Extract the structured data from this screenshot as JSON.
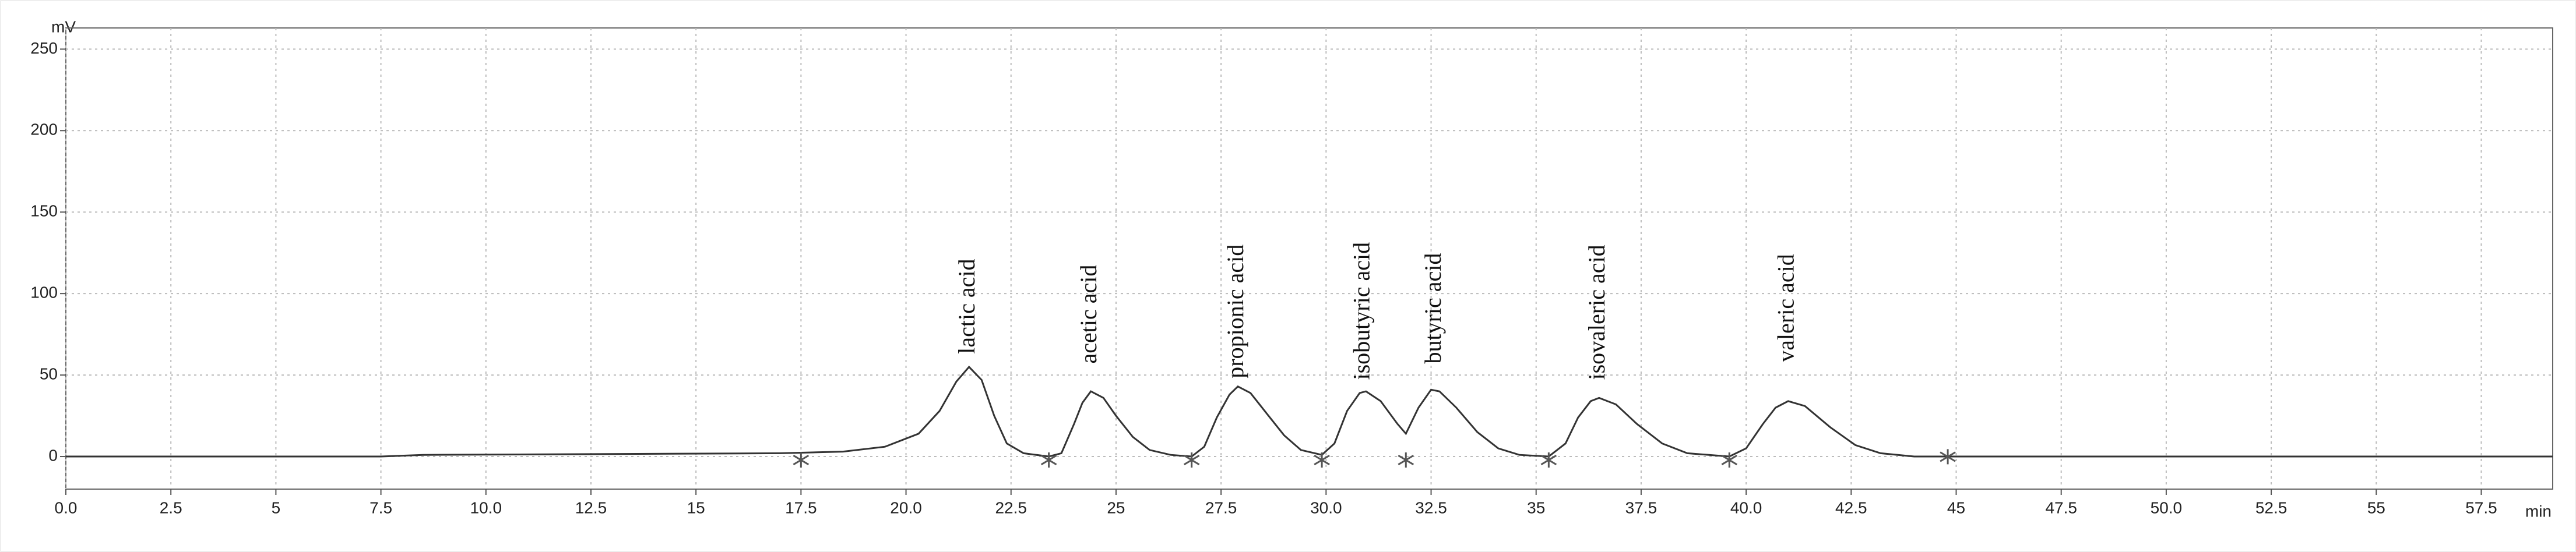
{
  "chart_data": {
    "type": "line",
    "x_unit": "min",
    "y_unit": "mV",
    "xlim": [
      0,
      59.2
    ],
    "ylim": [
      -20,
      263
    ],
    "xticks": [
      {
        "value": 0,
        "label": "0.0"
      },
      2.5,
      5,
      7.5,
      {
        "value": 10,
        "label": "10.0"
      },
      12.5,
      15,
      17.5,
      {
        "value": 20,
        "label": "20.0"
      },
      22.5,
      25,
      27.5,
      {
        "value": 30,
        "label": "30.0"
      },
      32.5,
      35,
      37.5,
      {
        "value": 40,
        "label": "40.0"
      },
      42.5,
      45,
      47.5,
      {
        "value": 50,
        "label": "50.0"
      },
      52.5,
      55,
      57.5
    ],
    "yticks": [
      0,
      50,
      100,
      150,
      200,
      250
    ],
    "grid": true,
    "color": "#333333",
    "x": [
      0,
      7.5,
      8.5,
      17,
      18.5,
      19.5,
      20.3,
      20.8,
      21.2,
      21.5,
      21.8,
      22.1,
      22.4,
      22.8,
      23.4,
      23.7,
      24.0,
      24.2,
      24.4,
      24.7,
      25.0,
      25.4,
      25.8,
      26.3,
      26.8,
      27.1,
      27.4,
      27.7,
      27.9,
      28.2,
      28.6,
      29.0,
      29.4,
      29.9,
      30.2,
      30.5,
      30.8,
      30.95,
      31.3,
      31.7,
      31.9,
      32.2,
      32.5,
      32.7,
      33.1,
      33.6,
      34.1,
      34.6,
      35.3,
      35.7,
      36.0,
      36.3,
      36.5,
      36.9,
      37.4,
      38.0,
      38.6,
      39.6,
      40.0,
      40.4,
      40.7,
      41.0,
      41.4,
      42.0,
      42.6,
      43.2,
      44.0,
      59.2
    ],
    "values": [
      0,
      0,
      1,
      2,
      3,
      6,
      14,
      28,
      46,
      55,
      47,
      25,
      8,
      2,
      0,
      2,
      20,
      33,
      40,
      36,
      25,
      12,
      4,
      1,
      0,
      6,
      24,
      38,
      43,
      39,
      26,
      13,
      4,
      1,
      8,
      28,
      39,
      40,
      34,
      20,
      14,
      30,
      41,
      40,
      30,
      15,
      5,
      1,
      0,
      8,
      24,
      34,
      36,
      32,
      20,
      8,
      2,
      0,
      5,
      20,
      30,
      34,
      31,
      18,
      7,
      2,
      0,
      0
    ],
    "events": {
      "color": "#555555",
      "x": [
        17.5,
        23.4,
        26.8,
        29.9,
        31.9,
        35.3,
        39.6,
        44.8
      ],
      "values": [
        0,
        0,
        0,
        0,
        0,
        0,
        0,
        2
      ]
    },
    "annotations": [
      {
        "text": "lactic acid",
        "x": 21.5,
        "y": 63
      },
      {
        "text": "acetic acid",
        "x": 24.4,
        "y": 57
      },
      {
        "text": "propionic acid",
        "x": 27.9,
        "y": 48
      },
      {
        "text": "isobutyric acid",
        "x": 30.9,
        "y": 47
      },
      {
        "text": "butyric acid",
        "x": 32.6,
        "y": 57
      },
      {
        "text": "isovaleric acid",
        "x": 36.5,
        "y": 47
      },
      {
        "text": "valeric acid",
        "x": 41.0,
        "y": 58
      }
    ]
  }
}
